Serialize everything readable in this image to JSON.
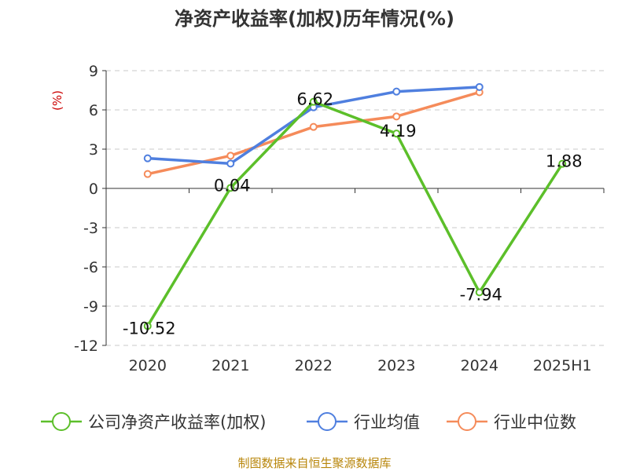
{
  "chart_data": {
    "type": "line",
    "title": "净资产收益率(加权)历年情况(%)",
    "ylabel": "(%)",
    "source": "制图数据来自恒生聚源数据库",
    "categories": [
      "2020",
      "2021",
      "2022",
      "2023",
      "2024",
      "2025H1"
    ],
    "ylim": [
      -12,
      9
    ],
    "yticks": [
      9,
      6,
      3,
      0,
      -3,
      -6,
      -9,
      -12
    ],
    "grid": true,
    "legend_position": "bottom",
    "series": [
      {
        "name": "公司净资产收益率(加权)",
        "color": "#5cbf2a",
        "values": [
          -10.52,
          0.04,
          6.62,
          4.19,
          -7.94,
          1.88
        ],
        "labels": [
          "-10.52",
          "0.04",
          "6.62",
          "4.19",
          "-7.94",
          "1.88"
        ]
      },
      {
        "name": "行业均值",
        "color": "#4f7fdf",
        "values": [
          2.3,
          1.9,
          6.2,
          7.4,
          7.75,
          null
        ]
      },
      {
        "name": "行业中位数",
        "color": "#f58b5a",
        "values": [
          1.1,
          2.5,
          4.7,
          5.5,
          7.35,
          null
        ]
      }
    ]
  }
}
